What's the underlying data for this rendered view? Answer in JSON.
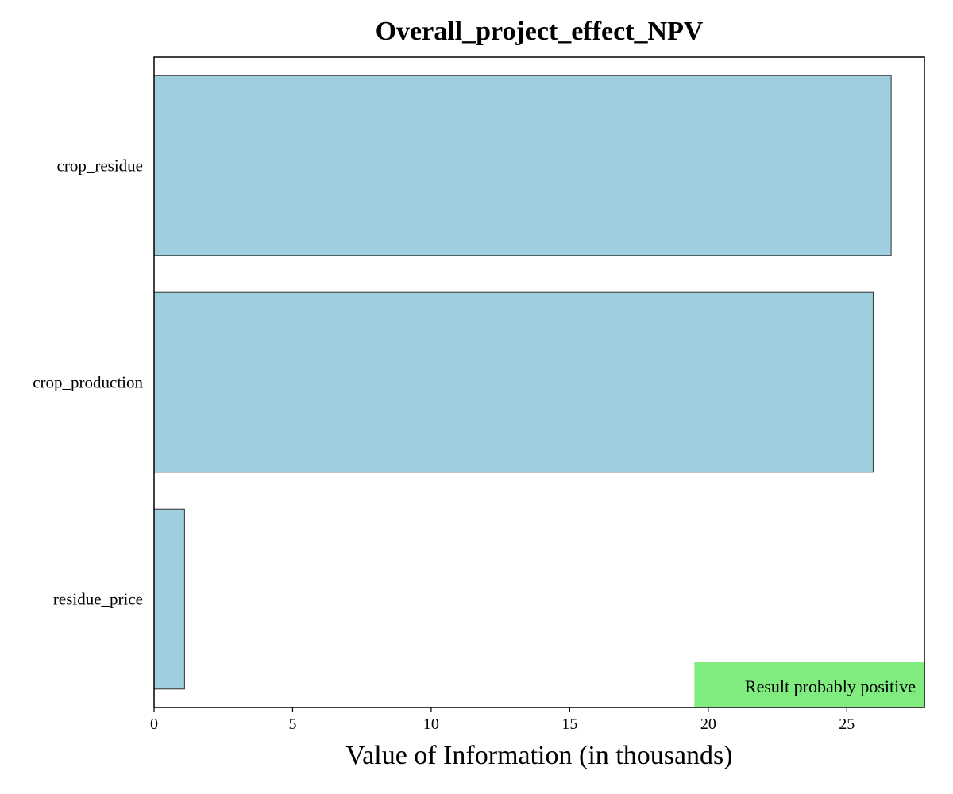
{
  "chart_data": {
    "type": "bar",
    "orientation": "horizontal",
    "title": "Overall_project_effect_NPV",
    "xlabel": "Value of Information (in thousands)",
    "ylabel": "",
    "categories": [
      "crop_residue",
      "crop_production",
      "residue_price"
    ],
    "values": [
      26.6,
      25.95,
      1.1
    ],
    "xlim": [
      0,
      27.8
    ],
    "xticks": [
      0,
      5,
      10,
      15,
      20,
      25
    ],
    "xtick_labels": [
      "0",
      "5",
      "10",
      "15",
      "20",
      "25"
    ],
    "bar_color": "#9fcfdf",
    "bar_edge_color": "#333333",
    "grid": false,
    "annotation": {
      "text": "Result probably positive",
      "background": "#80ec80",
      "placement": "bottom-right"
    }
  }
}
